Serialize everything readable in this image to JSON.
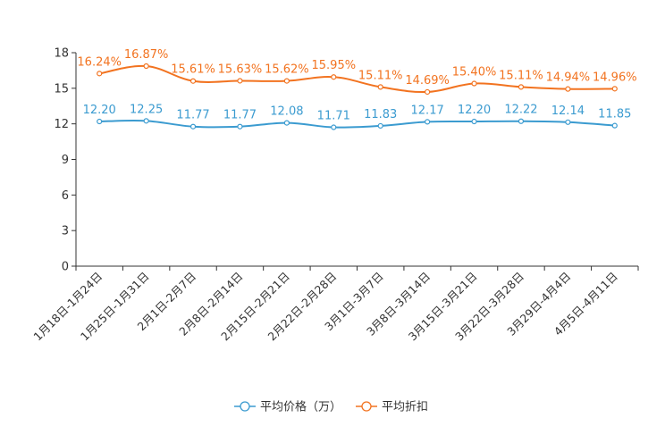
{
  "chart_data": {
    "type": "line",
    "title": "",
    "xlabel": "",
    "ylabel": "",
    "ylim": [
      0,
      18
    ],
    "yticks": [
      0,
      3,
      6,
      9,
      12,
      15,
      18
    ],
    "ytick_labels": [
      "0",
      "3",
      "6",
      "9",
      "12",
      "15",
      "18"
    ],
    "categories": [
      "1月18日-1月24日",
      "1月25日-1月31日",
      "2月1日-2月7日",
      "2月8日-2月14日",
      "2月15日-2月21日",
      "2月22日-2月28日",
      "3月1日-3月7日",
      "3月8日-3月14日",
      "3月15日-3月21日",
      "3月22日-3月28日",
      "3月29日-4月4日",
      "4月5日-4月11日"
    ],
    "series": [
      {
        "name": "平均价格（万）",
        "color": "#3b9bd0",
        "values": [
          12.2,
          12.25,
          11.77,
          11.77,
          12.08,
          11.71,
          11.83,
          12.17,
          12.2,
          12.22,
          12.14,
          11.85
        ],
        "labels": [
          "12.20",
          "12.25",
          "11.77",
          "11.77",
          "12.08",
          "11.71",
          "11.83",
          "12.17",
          "12.20",
          "12.22",
          "12.14",
          "11.85"
        ]
      },
      {
        "name": "平均折扣",
        "color": "#f27320",
        "values": [
          16.24,
          16.87,
          15.61,
          15.63,
          15.62,
          15.95,
          15.11,
          14.69,
          15.4,
          15.11,
          14.94,
          14.96
        ],
        "labels": [
          "16.24%",
          "16.87%",
          "15.61%",
          "15.63%",
          "15.62%",
          "15.95%",
          "15.11%",
          "14.69%",
          "15.40%",
          "15.11%",
          "14.94%",
          "14.96%"
        ]
      }
    ],
    "legend_position": "bottom-center",
    "grid": false
  }
}
